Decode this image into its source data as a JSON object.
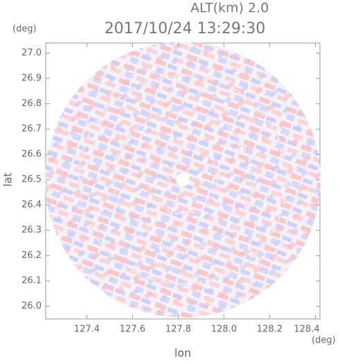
{
  "chart_data": {
    "type": "radar-map",
    "title": "2017/10/24 13:29:30",
    "annotation": "ALT(km) 2.0",
    "x_label": "lon",
    "x_unit": "(deg)",
    "y_label": "lat",
    "y_unit": "(deg)",
    "xlim": [
      127.22,
      128.42
    ],
    "xticks": [
      {
        "value": 127.4,
        "label": "127.4"
      },
      {
        "value": 127.6,
        "label": "127.6"
      },
      {
        "value": 127.8,
        "label": "127.8"
      },
      {
        "value": 128.0,
        "label": "128.0"
      },
      {
        "value": 128.2,
        "label": "128.2"
      },
      {
        "value": 128.4,
        "label": "128.4"
      }
    ],
    "ylim": [
      25.95,
      27.04
    ],
    "yticks": [
      {
        "value": 26.0,
        "label": "26.0"
      },
      26.1,
      26.2,
      26.3,
      26.4,
      26.5,
      26.6,
      26.7,
      26.8,
      26.9,
      {
        "value": 27.0,
        "label": "27.0"
      }
    ]
  }
}
